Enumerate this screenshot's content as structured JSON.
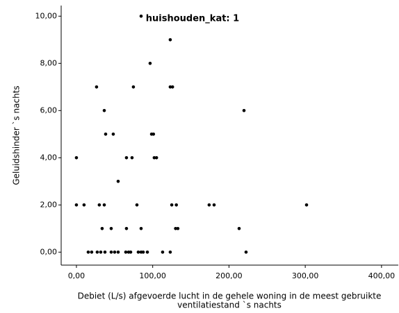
{
  "chart_data": {
    "type": "scatter",
    "title": "huishouden_kat: 1",
    "x_label": [
      "Debiet (L/s) afgevoerde lucht in de gehele woning in de meest gebruikte",
      "ventilatiestand `s nachts"
    ],
    "y_label": "Geluidshinder `s nachts",
    "color": "#000000",
    "xlim": [
      -20,
      422
    ],
    "ylim": [
      -0.55,
      10.45
    ],
    "xticks": [
      {
        "value": 0,
        "label": "0,00"
      },
      {
        "value": 100,
        "label": "100,00"
      },
      {
        "value": 200,
        "label": "200,00"
      },
      {
        "value": 300,
        "label": "300,00"
      },
      {
        "value": 400,
        "label": "400,00"
      }
    ],
    "yticks": [
      {
        "value": 0,
        "label": "0,00"
      },
      {
        "value": 2,
        "label": "2,00"
      },
      {
        "value": 4,
        "label": "4,00"
      },
      {
        "value": 6,
        "label": "6,00"
      },
      {
        "value": 8,
        "label": "8,00"
      },
      {
        "value": 10,
        "label": "10,00"
      }
    ],
    "x": [
      84.8,
      123,
      96.6,
      26.4,
      74.7,
      123,
      126,
      36.5,
      219.7,
      38.3,
      48.3,
      98.5,
      101,
      0,
      65.6,
      72.9,
      102,
      105,
      54.7,
      0,
      10,
      30,
      36.5,
      79.3,
      125,
      131,
      174,
      180.5,
      301.7,
      33.7,
      45.6,
      65.6,
      84.8,
      130,
      133,
      213.3,
      15.5,
      20,
      27.3,
      31.9,
      37.4,
      45.6,
      50.1,
      54.7,
      64.7,
      68.4,
      71.1,
      81.1,
      84.8,
      87.5,
      93,
      113,
      123,
      222.4
    ],
    "values": [
      10,
      9,
      8,
      7,
      7,
      7,
      7,
      6,
      6,
      5,
      5,
      5,
      5,
      4,
      4,
      4,
      4,
      4,
      3,
      2,
      2,
      2,
      2,
      2,
      2,
      2,
      2,
      2,
      2,
      1,
      1,
      1,
      1,
      1,
      1,
      1,
      0,
      0,
      0,
      0,
      0,
      0,
      0,
      0,
      0,
      0,
      0,
      0,
      0,
      0,
      0,
      0,
      0,
      0
    ]
  }
}
